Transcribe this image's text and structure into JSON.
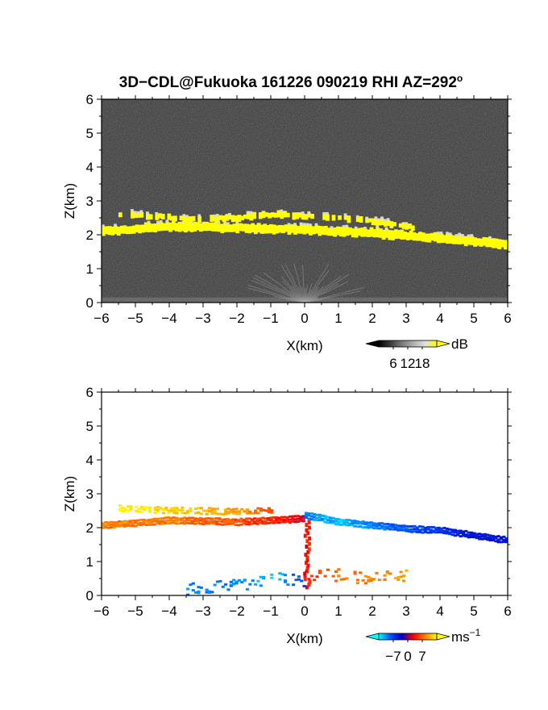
{
  "title": {
    "text": "3D−CDL@Fukuoka 161226 090219 RHI AZ=292",
    "superscript": "o"
  },
  "chart_data": [
    {
      "type": "heatmap",
      "name": "snr-panel",
      "xlabel": "X(km)",
      "ylabel": "Z(km)",
      "xlim": [
        -6,
        6
      ],
      "ylim": [
        0,
        6
      ],
      "x_ticks": [
        "−6",
        "−5",
        "−4",
        "−3",
        "−2",
        "−1",
        "0",
        "1",
        "2",
        "3",
        "4",
        "5",
        "6"
      ],
      "y_ticks": [
        "0",
        "1",
        "2",
        "3",
        "4",
        "5",
        "6"
      ],
      "background": "#2a2a2a",
      "cloud_color": "#ffff00",
      "colorbar": {
        "unit": "dB",
        "ticks": [
          "6",
          "12",
          "18"
        ],
        "colors": [
          "#000000",
          "#3c3c3c",
          "#7a7a7a",
          "#b0b0b0",
          "#e0e0e0",
          "#ffff00"
        ]
      },
      "layers": [
        {
          "name": "main-cloud-base",
          "x": [
            -6,
            -4,
            -2,
            0,
            2,
            4,
            6
          ],
          "z": [
            2.1,
            2.25,
            2.2,
            2.15,
            2.05,
            1.9,
            1.7
          ]
        },
        {
          "name": "upper-cloud-fragments",
          "x": [
            -5.5,
            -4.5,
            -3.5,
            -2.0,
            -1.0,
            0.0,
            1.0,
            2.0,
            3.3
          ],
          "z": [
            2.6,
            2.55,
            2.45,
            2.5,
            2.6,
            2.55,
            2.5,
            2.4,
            2.2
          ]
        }
      ]
    },
    {
      "type": "heatmap",
      "name": "velocity-panel",
      "xlabel": "X(km)",
      "ylabel": "Z(km)",
      "xlim": [
        -6,
        6
      ],
      "ylim": [
        0,
        6
      ],
      "x_ticks": [
        "−6",
        "−5",
        "−4",
        "−3",
        "−2",
        "−1",
        "0",
        "1",
        "2",
        "3",
        "4",
        "5",
        "6"
      ],
      "y_ticks": [
        "0",
        "1",
        "2",
        "3",
        "4",
        "5",
        "6"
      ],
      "colorbar": {
        "unit": "ms",
        "unit_exponent": "−1",
        "ticks": [
          "−7",
          "0",
          "7"
        ],
        "range": [
          -7,
          7
        ],
        "colors": [
          "#00ffff",
          "#0050ff",
          "#0000c8",
          "#ff0000",
          "#ff8000",
          "#ffff00"
        ]
      },
      "layers": [
        {
          "name": "cloud-layer-left",
          "x": [
            -6,
            -4,
            -2,
            0
          ],
          "z": [
            2.1,
            2.25,
            2.2,
            2.3
          ],
          "velocity": [
            4,
            4,
            3,
            1
          ]
        },
        {
          "name": "cloud-layer-top-left",
          "x": [
            -5.5,
            -4.0,
            -2.0,
            -1.0
          ],
          "z": [
            2.6,
            2.55,
            2.5,
            2.55
          ],
          "velocity": [
            7,
            6,
            5,
            3
          ]
        },
        {
          "name": "cloud-layer-right",
          "x": [
            0,
            1,
            2,
            3,
            4,
            5,
            6
          ],
          "z": [
            2.4,
            2.2,
            2.1,
            2.0,
            1.95,
            1.8,
            1.65
          ],
          "velocity": [
            -5,
            -6,
            -5,
            -4,
            -3,
            -2,
            -2
          ]
        },
        {
          "name": "low-echo-left",
          "x": [
            -3.5,
            -2,
            -1,
            0
          ],
          "z": [
            0.05,
            0.15,
            0.35,
            0.3
          ],
          "velocity": [
            -5,
            -5,
            -6,
            -4
          ]
        },
        {
          "name": "low-echo-right",
          "x": [
            0,
            0.5,
            1,
            2,
            3
          ],
          "z": [
            0.4,
            0.5,
            0.45,
            0.35,
            0.45
          ],
          "velocity": [
            2,
            3,
            4,
            4,
            5
          ]
        }
      ]
    }
  ]
}
